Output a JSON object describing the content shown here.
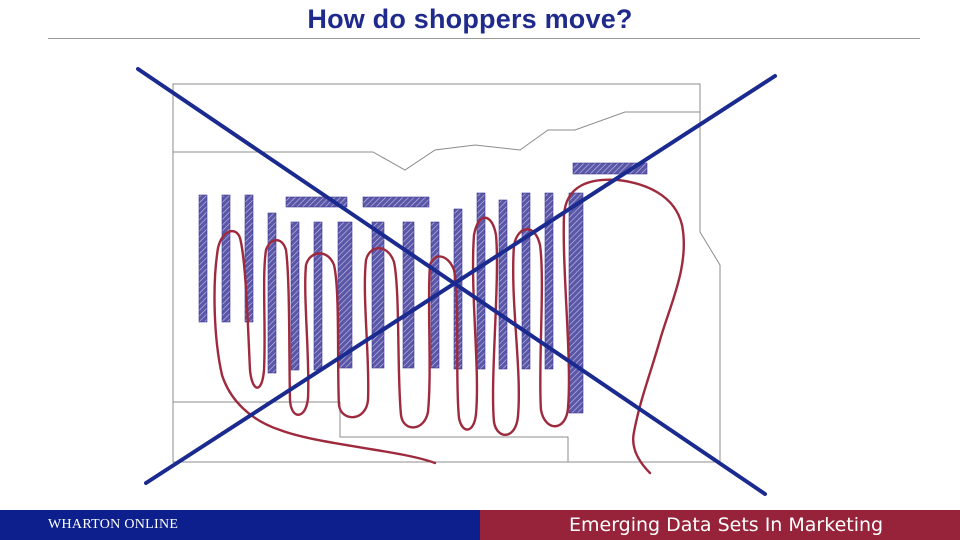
{
  "slide": {
    "title": "How do shoppers move?"
  },
  "colors": {
    "title": "#1f2a8c",
    "cross": "#1a2a8f",
    "path": "#9e2a3e",
    "shelf": "#5a56a8",
    "wall": "#8c8c8c",
    "footer_left_bg": "#0c1f8c",
    "footer_right_bg": "#96233a"
  },
  "footer": {
    "brand": "WHARTON ONLINE",
    "course": "Emerging Data Sets In Marketing"
  }
}
